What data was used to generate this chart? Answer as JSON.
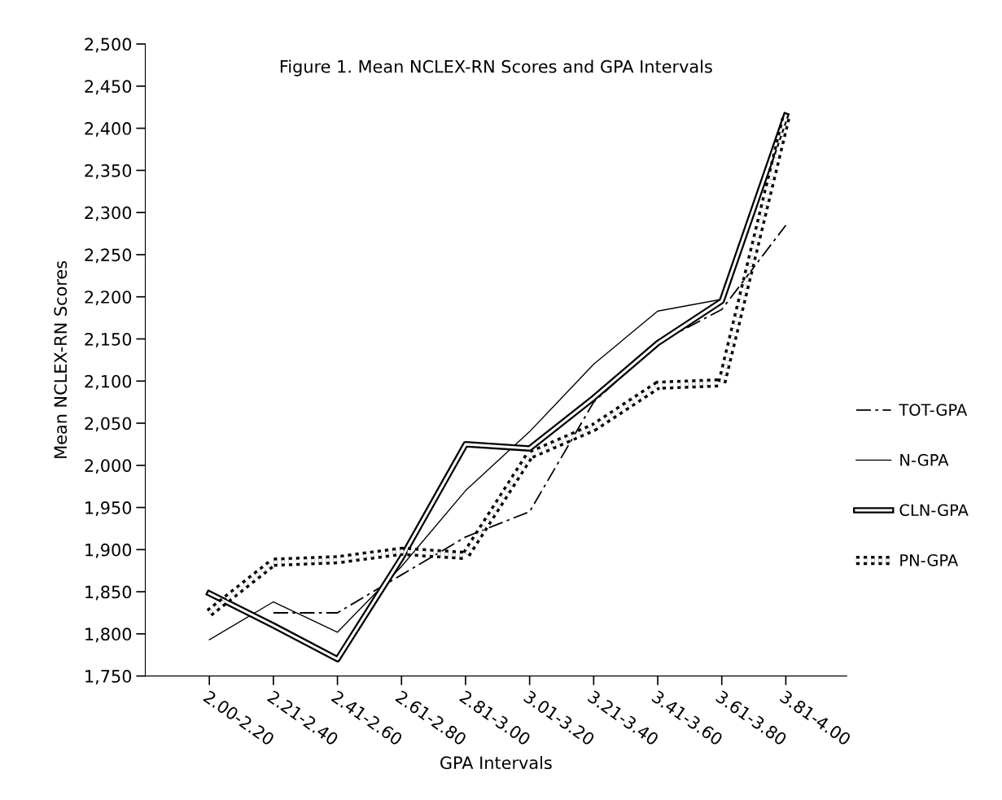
{
  "chart_data": {
    "type": "line",
    "title": "Figure 1. Mean NCLEX-RN Scores and GPA Intervals",
    "xlabel": "GPA Intervals",
    "ylabel": "Mean NCLEX-RN Scores",
    "categories": [
      "2.00-2.20",
      "2.21-2.40",
      "2.41-2.60",
      "2.61-2.80",
      "2.81-3.00",
      "3.01-3.20",
      "3.21-3.40",
      "3.41-3.60",
      "3.61-3.80",
      "3.81-4.00"
    ],
    "series": [
      {
        "name": "TOT-GPA",
        "color": "#000000",
        "line_style": "dashed",
        "values": [
          null,
          1825,
          1825,
          1870,
          1915,
          1945,
          2075,
          2145,
          2185,
          2285
        ]
      },
      {
        "name": "N-GPA",
        "color": "#000000",
        "line_style": "solid",
        "values": [
          1793,
          1838,
          1802,
          1880,
          1970,
          2040,
          2120,
          2183,
          2197,
          2410
        ]
      },
      {
        "name": "CLN-GPA",
        "color": "#000000",
        "line_style": "solid",
        "values": [
          1848,
          1810,
          1770,
          1890,
          2025,
          2020,
          2080,
          2145,
          2195,
          2415
        ]
      },
      {
        "name": "PN-GPA",
        "color": "#000000",
        "line_style": "dotted",
        "values": [
          1825,
          1885,
          1888,
          1898,
          1893,
          2012,
          2045,
          2095,
          2098,
          2412
        ]
      }
    ],
    "ylim": [
      1750,
      2500
    ],
    "yticks": [
      {
        "value": 1750,
        "label": "1,750"
      },
      {
        "value": 1800,
        "label": "1,800"
      },
      {
        "value": 1850,
        "label": "1,850"
      },
      {
        "value": 1900,
        "label": "1,900"
      },
      {
        "value": 1950,
        "label": "1,950"
      },
      {
        "value": 2000,
        "label": "2,000"
      },
      {
        "value": 2050,
        "label": "2,050"
      },
      {
        "value": 2100,
        "label": "2,100"
      },
      {
        "value": 2150,
        "label": "2,150"
      },
      {
        "value": 2200,
        "label": "2,200"
      },
      {
        "value": 2250,
        "label": "2,250"
      },
      {
        "value": 2300,
        "label": "2,300"
      },
      {
        "value": 2350,
        "label": "2,350"
      },
      {
        "value": 2400,
        "label": "2,400"
      },
      {
        "value": 2450,
        "label": "2,450"
      },
      {
        "value": 2500,
        "label": "2,500"
      }
    ],
    "grid": false,
    "legend": "right",
    "marker": "none"
  }
}
